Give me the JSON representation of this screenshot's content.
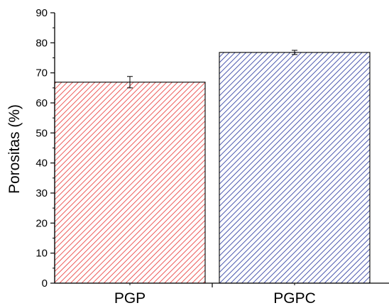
{
  "chart_data": {
    "type": "bar",
    "categories": [
      "PGP",
      "PGPC"
    ],
    "values": [
      66.9,
      76.8
    ],
    "errors": [
      1.9,
      0.7
    ],
    "ylabel": "Porositas (%)",
    "xlabel": "",
    "ylim": [
      0,
      90
    ],
    "yticks": [
      0,
      10,
      20,
      30,
      40,
      50,
      60,
      70,
      80,
      90
    ],
    "fill_pattern": "diagonal-hatch",
    "colors": [
      "#e8312f",
      "#1f2f9a"
    ],
    "grid": false,
    "legend": "none"
  }
}
